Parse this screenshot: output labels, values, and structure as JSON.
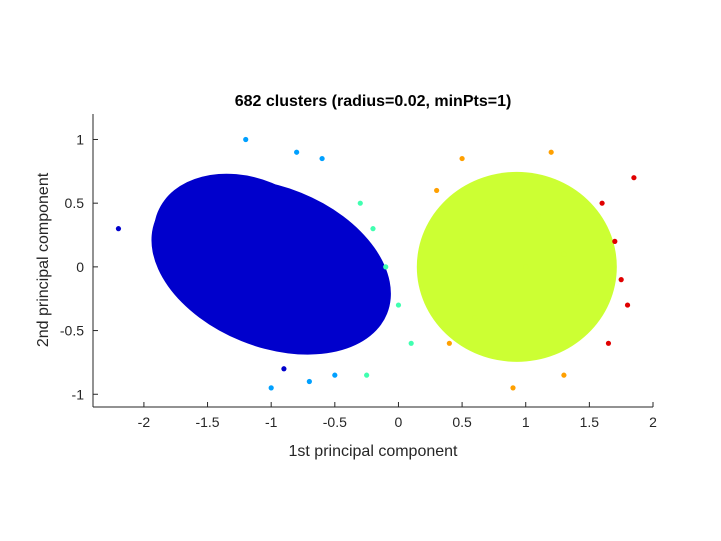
{
  "chart_data": {
    "type": "scatter",
    "title": "682 clusters (radius=0.02, minPts=1)",
    "xlabel": "1st principal component",
    "ylabel": "2nd principal component",
    "xlim": [
      -2.4,
      2
    ],
    "ylim": [
      -1.1,
      1.2
    ],
    "xticks": [
      -2,
      -1.5,
      -1,
      -0.5,
      0,
      0.5,
      1,
      1.5,
      2
    ],
    "xtick_labels": [
      "-2",
      "-1.5",
      "-1",
      "-0.5",
      "0",
      "0.5",
      "1",
      "1.5",
      "2"
    ],
    "yticks": [
      -1,
      -0.5,
      0,
      0.5,
      1
    ],
    "ytick_labels": [
      "-1",
      "-0.5",
      "0",
      "0.5",
      "1"
    ],
    "grid": false,
    "colormap": "jet",
    "series": [
      {
        "color": "#0000CC",
        "x": [
          -1.8,
          -1.6,
          -1.4,
          -1.2,
          -1.0,
          -0.8,
          -0.6,
          -0.4,
          -1.5,
          -1.1,
          -0.7,
          -1.9,
          -2.2,
          -1.3,
          -0.9
        ],
        "y": [
          0.4,
          0.6,
          0.5,
          0.3,
          0.2,
          0.0,
          -0.2,
          -0.4,
          -0.3,
          -0.5,
          -0.6,
          0.1,
          0.3,
          0.7,
          -0.8
        ]
      },
      {
        "color": "#00A0FF",
        "x": [
          -0.8,
          -0.7,
          -1.0,
          -0.6,
          -1.2,
          -0.5
        ],
        "y": [
          0.9,
          -0.9,
          -0.95,
          0.85,
          1.0,
          -0.85
        ]
      },
      {
        "color": "#40FFB0",
        "x": [
          -0.3,
          -0.2,
          -0.1,
          0.0,
          0.1,
          -0.25
        ],
        "y": [
          0.5,
          0.3,
          0.0,
          -0.3,
          -0.6,
          -0.85
        ]
      },
      {
        "color": "#CCFF33",
        "x": [
          0.5,
          0.7,
          0.9,
          1.1,
          1.3,
          0.6,
          1.2,
          0.8,
          1.0,
          1.4
        ],
        "y": [
          0.2,
          0.5,
          0.7,
          0.4,
          0.1,
          -0.4,
          -0.5,
          -0.7,
          0.0,
          -0.2
        ]
      },
      {
        "color": "#FFA000",
        "x": [
          0.3,
          0.5,
          1.2,
          0.4,
          0.9,
          1.3
        ],
        "y": [
          0.6,
          0.85,
          0.9,
          -0.6,
          -0.95,
          -0.85
        ]
      },
      {
        "color": "#E00000",
        "x": [
          1.6,
          1.7,
          1.75,
          1.8,
          1.65,
          1.85
        ],
        "y": [
          0.5,
          0.2,
          -0.1,
          -0.3,
          -0.6,
          0.7
        ]
      }
    ]
  }
}
